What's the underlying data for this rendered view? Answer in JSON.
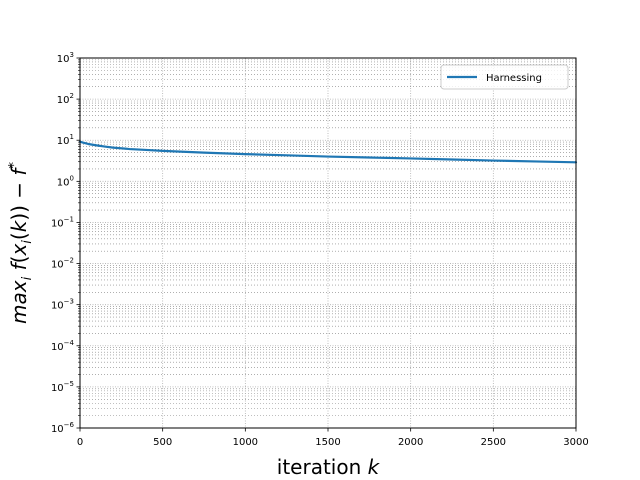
{
  "chart_data": {
    "type": "line",
    "title": "",
    "xlabel": "iteration k",
    "ylabel": "max_i f(x_i(k)) − f*",
    "yscale": "log",
    "xlim": [
      0,
      3000
    ],
    "ylim": [
      1e-06,
      1000.0
    ],
    "x_ticks": [
      0,
      500,
      1000,
      1500,
      2000,
      2500,
      3000
    ],
    "y_tick_exponents": [
      -6,
      -5,
      -4,
      -3,
      -2,
      -1,
      0,
      1,
      2,
      3
    ],
    "grid": true,
    "legend_position": "upper right",
    "series": [
      {
        "name": "Harnessing",
        "color": "#1f77b4",
        "x": [
          0,
          20,
          50,
          100,
          150,
          200,
          300,
          400,
          500,
          750,
          1000,
          1250,
          1500,
          1750,
          2000,
          2250,
          2500,
          2750,
          3000
        ],
        "y": [
          9.2,
          8.7,
          8.1,
          7.5,
          7.0,
          6.6,
          6.1,
          5.8,
          5.5,
          5.0,
          4.6,
          4.3,
          4.0,
          3.8,
          3.6,
          3.4,
          3.2,
          3.05,
          2.9
        ]
      }
    ]
  }
}
